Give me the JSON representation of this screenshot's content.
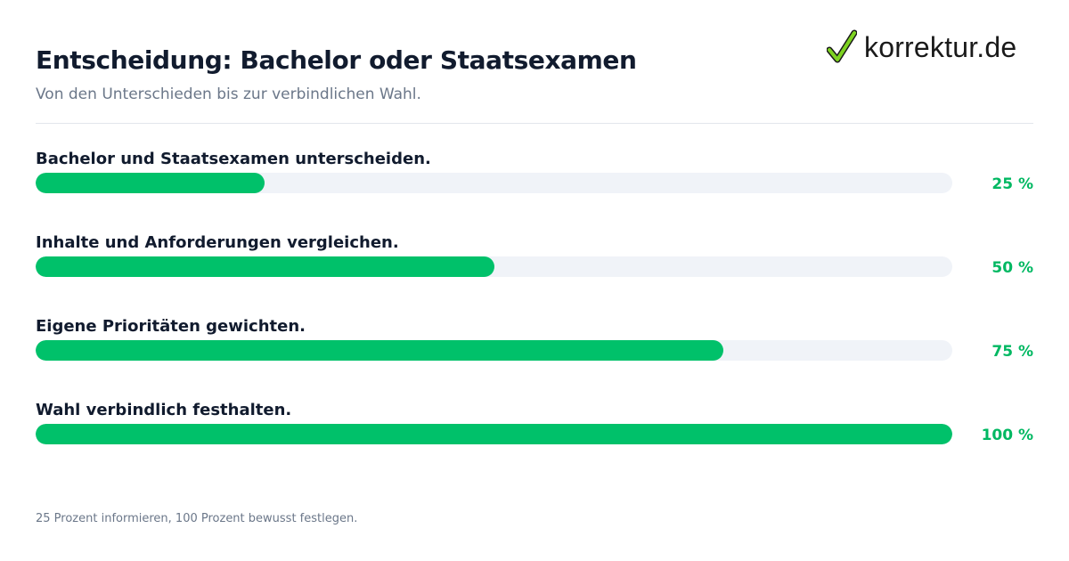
{
  "header": {
    "title": "Entscheidung: Bachelor oder Staatsexamen",
    "subtitle": "Von den Unterschieden bis zur verbindlichen Wahl."
  },
  "brand": {
    "name": "korrektur.de",
    "icon": "checkmark-icon",
    "icon_color": "#2e9e2e"
  },
  "colors": {
    "bar": "#00c16a",
    "track": "#f0f3f8",
    "value_text": "#00b862"
  },
  "chart_data": {
    "type": "bar",
    "orientation": "horizontal",
    "categories": [
      "Bachelor und Staatsexamen unterscheiden.",
      "Inhalte und Anforderungen vergleichen.",
      "Eigene Prioritäten gewichten.",
      "Wahl verbindlich festhalten."
    ],
    "values": [
      25,
      50,
      75,
      100
    ],
    "value_labels": [
      "25 %",
      "50 %",
      "75 %",
      "100 %"
    ],
    "xlim": [
      0,
      100
    ],
    "title": "Entscheidung: Bachelor oder Staatsexamen",
    "subtitle": "Von den Unterschieden bis zur verbindlichen Wahl.",
    "xlabel": "",
    "ylabel": "",
    "grid": false,
    "legend": "none"
  },
  "footnote": "25 Prozent informieren, 100 Prozent bewusst festlegen."
}
